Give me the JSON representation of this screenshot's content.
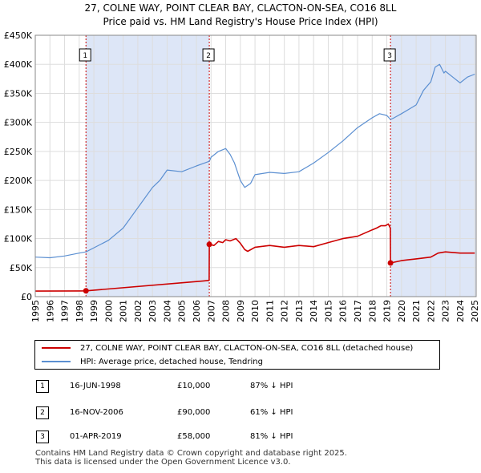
{
  "chart_data": {
    "type": "line",
    "title": "27, COLNE WAY, POINT CLEAR BAY, CLACTON-ON-SEA, CO16 8LL",
    "subtitle": "Price paid vs. HM Land Registry's House Price Index (HPI)",
    "xlabel": "",
    "ylabel": "",
    "xlim": [
      1995,
      2025.1
    ],
    "ylim": [
      0,
      450000
    ],
    "x_ticks": [
      "1995",
      "1996",
      "1997",
      "1998",
      "1999",
      "2000",
      "2001",
      "2002",
      "2003",
      "2004",
      "2005",
      "2006",
      "2007",
      "2008",
      "2009",
      "2010",
      "2011",
      "2012",
      "2013",
      "2014",
      "2015",
      "2016",
      "2017",
      "2018",
      "2019",
      "2020",
      "2021",
      "2022",
      "2023",
      "2024",
      "2025"
    ],
    "y_ticks": [
      {
        "value": 0,
        "label": "£0"
      },
      {
        "value": 50000,
        "label": "£50K"
      },
      {
        "value": 100000,
        "label": "£100K"
      },
      {
        "value": 150000,
        "label": "£150K"
      },
      {
        "value": 200000,
        "label": "£200K"
      },
      {
        "value": 250000,
        "label": "£250K"
      },
      {
        "value": 300000,
        "label": "£300K"
      },
      {
        "value": 350000,
        "label": "£350K"
      },
      {
        "value": 400000,
        "label": "£400K"
      },
      {
        "value": 450000,
        "label": "£450K"
      }
    ],
    "grid": true,
    "shaded_periods": [
      [
        1998.46,
        2006.88
      ],
      [
        2019.25,
        2025.1
      ]
    ],
    "colors": {
      "property": "#cc0000",
      "hpi": "#5b8fd1",
      "grid": "#dddddd",
      "shade": "#dde6f7",
      "marker_line": "#cc0000"
    },
    "series": [
      {
        "name": "property",
        "x": [
          1995,
          1998.0,
          1998.46,
          2006.5,
          2006.87,
          2006.88,
          2007.2,
          2007.5,
          2007.8,
          2008.0,
          2008.3,
          2008.7,
          2009.0,
          2009.3,
          2009.5,
          2010,
          2011,
          2012,
          2013,
          2014,
          2015,
          2016,
          2017,
          2018.0,
          2018.3,
          2018.6,
          2018.9,
          2019.1,
          2019.24,
          2019.25,
          2020,
          2021,
          2022,
          2022.5,
          2023,
          2024,
          2025
        ],
        "y": [
          9500,
          9800,
          10000,
          27000,
          28000,
          90000,
          88000,
          95000,
          93000,
          98000,
          96000,
          100000,
          92000,
          81000,
          78000,
          85000,
          88000,
          85000,
          88000,
          86000,
          93000,
          100000,
          104000,
          115000,
          118000,
          122000,
          122000,
          125000,
          118000,
          58000,
          62000,
          65000,
          68000,
          75000,
          77000,
          75000,
          75000
        ]
      },
      {
        "name": "hpi",
        "x": [
          1995,
          1996,
          1997,
          1998,
          1998.46,
          1999,
          2000,
          2001,
          2002,
          2003,
          2003.5,
          2004,
          2005,
          2006,
          2006.88,
          2007,
          2007.5,
          2008,
          2008.3,
          2008.6,
          2009,
          2009.3,
          2009.7,
          2010,
          2011,
          2012,
          2013,
          2014,
          2015,
          2016,
          2017,
          2018,
          2018.5,
          2019,
          2019.25,
          2019.5,
          2020,
          2021,
          2021.5,
          2022,
          2022.3,
          2022.6,
          2022.9,
          2023,
          2023.5,
          2024,
          2024.5,
          2025
        ],
        "y": [
          68000,
          67000,
          70000,
          75000,
          77000,
          84000,
          97000,
          118000,
          153000,
          188000,
          200000,
          218000,
          215000,
          225000,
          233000,
          240000,
          250000,
          255000,
          245000,
          230000,
          200000,
          188000,
          195000,
          210000,
          214000,
          212000,
          215000,
          230000,
          248000,
          268000,
          291000,
          308000,
          315000,
          312000,
          305000,
          308000,
          315000,
          330000,
          355000,
          370000,
          395000,
          400000,
          385000,
          388000,
          378000,
          368000,
          378000,
          383000
        ]
      }
    ],
    "sales": [
      {
        "num": "1",
        "x": 1998.46,
        "value": 10000
      },
      {
        "num": "2",
        "x": 2006.88,
        "value": 90000
      },
      {
        "num": "3",
        "x": 2019.25,
        "value": 58000
      }
    ]
  },
  "legend": {
    "property_label": "27, COLNE WAY, POINT CLEAR BAY, CLACTON-ON-SEA, CO16 8LL (detached house)",
    "hpi_label": "HPI: Average price, detached house, Tendring"
  },
  "sales_table": [
    {
      "num": "1",
      "date": "16-JUN-1998",
      "price": "£10,000",
      "hpi": "87% ↓ HPI"
    },
    {
      "num": "2",
      "date": "16-NOV-2006",
      "price": "£90,000",
      "hpi": "61% ↓ HPI"
    },
    {
      "num": "3",
      "date": "01-APR-2019",
      "price": "£58,000",
      "hpi": "81% ↓ HPI"
    }
  ],
  "footer": {
    "line1": "Contains HM Land Registry data © Crown copyright and database right 2025.",
    "line2": "This data is licensed under the Open Government Licence v3.0."
  }
}
